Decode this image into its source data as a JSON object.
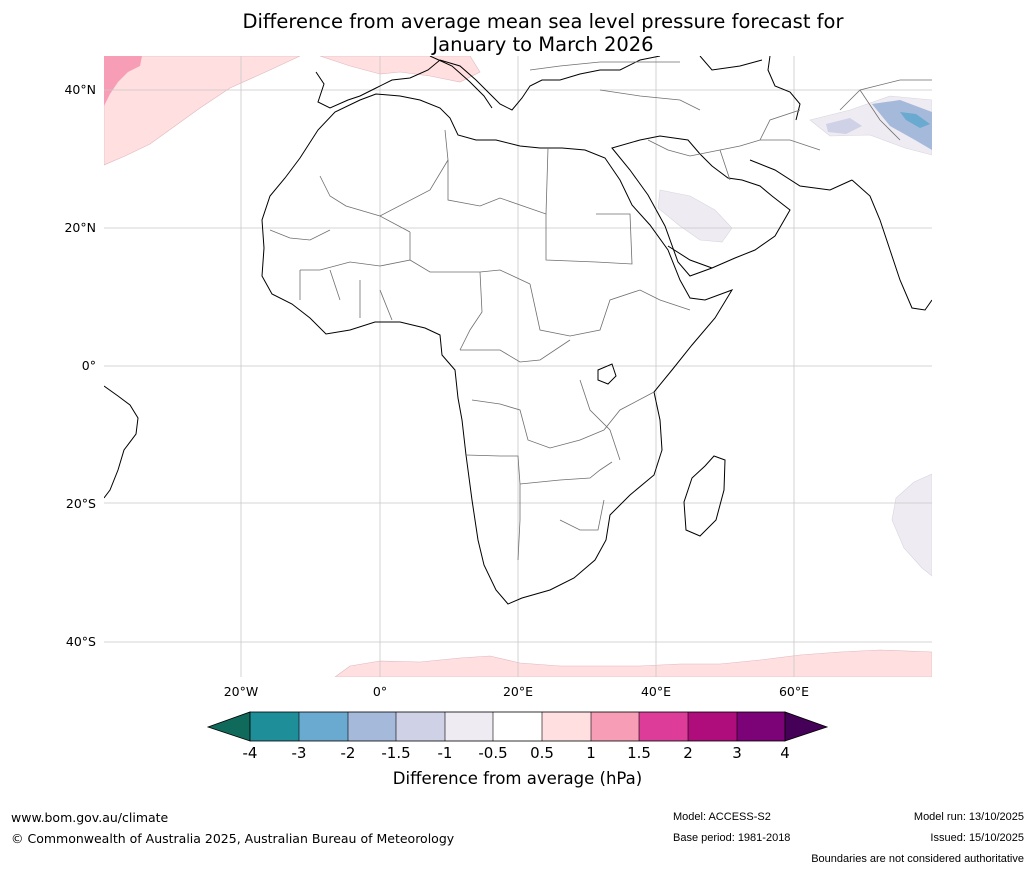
{
  "title_line1": "Difference from average mean sea level pressure forecast for",
  "title_line2": "January to March 2026",
  "lat_labels": [
    "40°N",
    "20°N",
    "0°",
    "20°S",
    "40°S"
  ],
  "lon_labels": [
    "20°W",
    "0°",
    "20°E",
    "40°E",
    "60°E"
  ],
  "colorbar": {
    "label": "Difference from average (hPa)",
    "ticks": [
      "-4",
      "-3",
      "-2",
      "-1.5",
      "-1",
      "-0.5",
      "0.5",
      "1",
      "1.5",
      "2",
      "3",
      "4"
    ],
    "colors": [
      "#106a5c",
      "#1e8f99",
      "#6aa9d0",
      "#a5b9da",
      "#cfd1e6",
      "#efebf2",
      "#ffffff",
      "#ffdfe0",
      "#f79eb6",
      "#dd3c99",
      "#ae0d7b",
      "#7c0278",
      "#450057"
    ]
  },
  "footer": {
    "url": "www.bom.gov.au/climate",
    "copyright": "© Commonwealth of Australia 2025, Australian Bureau of Meteorology",
    "model": "Model: ACCESS-S2",
    "base_period": "Base period: 1981-2018",
    "model_run": "Model run: 13/10/2025",
    "issued": "Issued: 15/10/2025",
    "disclaimer": "Boundaries are not considered authoritative"
  }
}
